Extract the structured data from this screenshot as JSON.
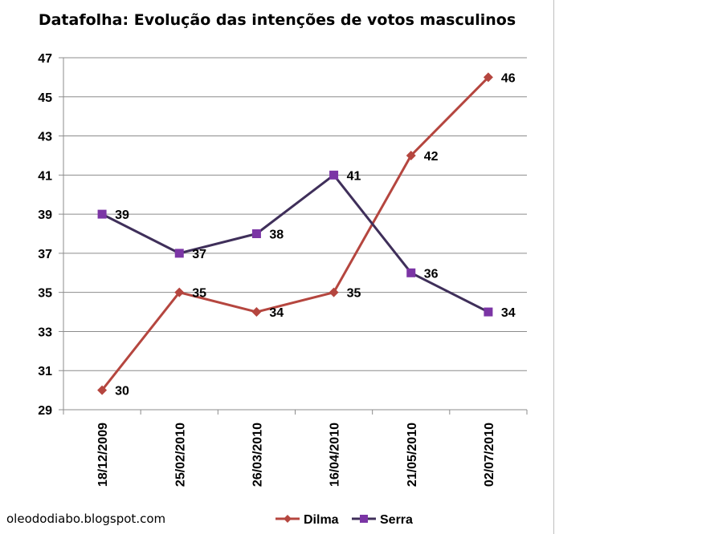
{
  "chart_data": {
    "type": "line",
    "title": "Datafolha: Evolução das intenções de votos masculinos",
    "xlabel": "",
    "ylabel": "",
    "categories": [
      "18/12/2009",
      "25/02/2010",
      "26/03/2010",
      "16/04/2010",
      "21/05/2010",
      "02/07/2010"
    ],
    "ylim": [
      29,
      47
    ],
    "yticks": [
      29,
      31,
      33,
      35,
      37,
      39,
      41,
      43,
      45,
      47
    ],
    "grid": true,
    "legend_position": "bottom",
    "series": [
      {
        "name": "Dilma",
        "color": "#b5463f",
        "marker": "diamond",
        "values": [
          30,
          35,
          34,
          35,
          42,
          46
        ]
      },
      {
        "name": "Serra",
        "color": "#3f2f5a",
        "marker_color": "#7b35a5",
        "marker": "square",
        "values": [
          39,
          37,
          38,
          41,
          36,
          34
        ]
      }
    ]
  },
  "watermark": "oleododiabo.blogspot.com"
}
